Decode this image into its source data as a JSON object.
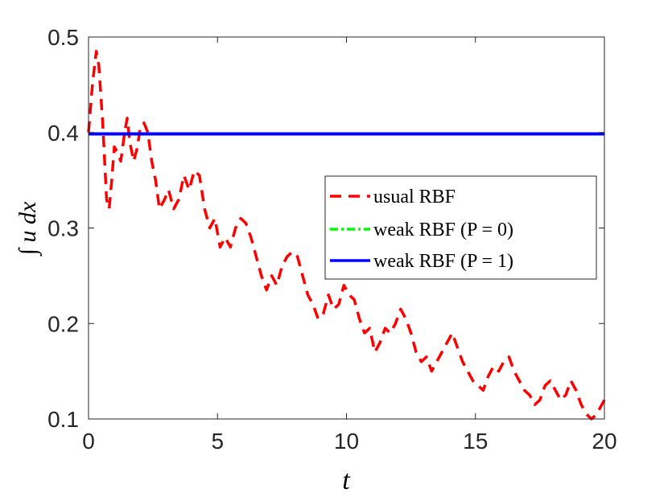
{
  "chart_data": {
    "type": "line",
    "xlabel": "t",
    "ylabel": "∫ u dx",
    "xlim": [
      0,
      20
    ],
    "ylim": [
      0.1,
      0.5
    ],
    "xticks": [
      0,
      5,
      10,
      15,
      20
    ],
    "xtick_labels": [
      "0",
      "5",
      "10",
      "15",
      "20"
    ],
    "yticks": [
      0.1,
      0.2,
      0.3,
      0.4,
      0.5
    ],
    "ytick_labels": [
      "0.1",
      "0.2",
      "0.3",
      "0.4",
      "0.5"
    ],
    "grid": false,
    "legend_position": "center-right",
    "series": [
      {
        "name": "usual RBF",
        "color": "#ff0000",
        "dash": "dashed",
        "x": [
          0,
          0.15,
          0.3,
          0.4,
          0.55,
          0.7,
          0.8,
          0.9,
          1.0,
          1.1,
          1.25,
          1.4,
          1.5,
          1.6,
          1.75,
          1.9,
          2.0,
          2.15,
          2.3,
          2.45,
          2.6,
          2.75,
          2.95,
          3.1,
          3.3,
          3.5,
          3.7,
          3.9,
          4.1,
          4.3,
          4.5,
          4.7,
          4.9,
          5.1,
          5.3,
          5.5,
          5.7,
          5.9,
          6.1,
          6.3,
          6.5,
          6.7,
          6.9,
          7.1,
          7.3,
          7.5,
          7.7,
          7.9,
          8.1,
          8.3,
          8.5,
          8.7,
          8.9,
          9.1,
          9.3,
          9.5,
          9.7,
          9.9,
          10.1,
          10.3,
          10.5,
          10.7,
          10.9,
          11.1,
          11.3,
          11.5,
          11.7,
          11.9,
          12.1,
          12.3,
          12.5,
          12.7,
          12.9,
          13.1,
          13.3,
          13.5,
          13.7,
          13.9,
          14.1,
          14.3,
          14.5,
          14.7,
          14.9,
          15.1,
          15.3,
          15.5,
          15.7,
          15.9,
          16.1,
          16.3,
          16.5,
          16.7,
          16.9,
          17.1,
          17.3,
          17.5,
          17.7,
          17.9,
          18.1,
          18.3,
          18.5,
          18.7,
          18.9,
          19.1,
          19.3,
          19.5,
          19.7,
          19.9,
          20.0
        ],
        "y": [
          0.4,
          0.45,
          0.485,
          0.47,
          0.41,
          0.33,
          0.32,
          0.35,
          0.385,
          0.38,
          0.37,
          0.4,
          0.415,
          0.39,
          0.37,
          0.385,
          0.405,
          0.41,
          0.4,
          0.37,
          0.35,
          0.32,
          0.33,
          0.34,
          0.32,
          0.33,
          0.355,
          0.34,
          0.36,
          0.355,
          0.32,
          0.3,
          0.31,
          0.28,
          0.29,
          0.28,
          0.3,
          0.31,
          0.305,
          0.29,
          0.27,
          0.25,
          0.235,
          0.25,
          0.24,
          0.26,
          0.27,
          0.275,
          0.27,
          0.25,
          0.23,
          0.22,
          0.205,
          0.21,
          0.23,
          0.215,
          0.22,
          0.24,
          0.23,
          0.225,
          0.205,
          0.19,
          0.195,
          0.17,
          0.18,
          0.195,
          0.19,
          0.2,
          0.215,
          0.205,
          0.19,
          0.17,
          0.16,
          0.165,
          0.15,
          0.16,
          0.17,
          0.18,
          0.19,
          0.175,
          0.16,
          0.15,
          0.14,
          0.135,
          0.13,
          0.145,
          0.155,
          0.15,
          0.16,
          0.165,
          0.15,
          0.14,
          0.13,
          0.125,
          0.115,
          0.12,
          0.135,
          0.14,
          0.13,
          0.12,
          0.125,
          0.14,
          0.13,
          0.115,
          0.105,
          0.1,
          0.105,
          0.115,
          0.12
        ]
      },
      {
        "name": "weak RBF (P = 0)",
        "color": "#00ff00",
        "dash": "dashdot",
        "x": [
          0,
          20
        ],
        "y": [
          0.3985,
          0.3985
        ]
      },
      {
        "name": "weak RBF (P = 1)",
        "color": "#0000ff",
        "dash": "solid",
        "x": [
          0,
          20
        ],
        "y": [
          0.3985,
          0.3985
        ]
      }
    ]
  }
}
